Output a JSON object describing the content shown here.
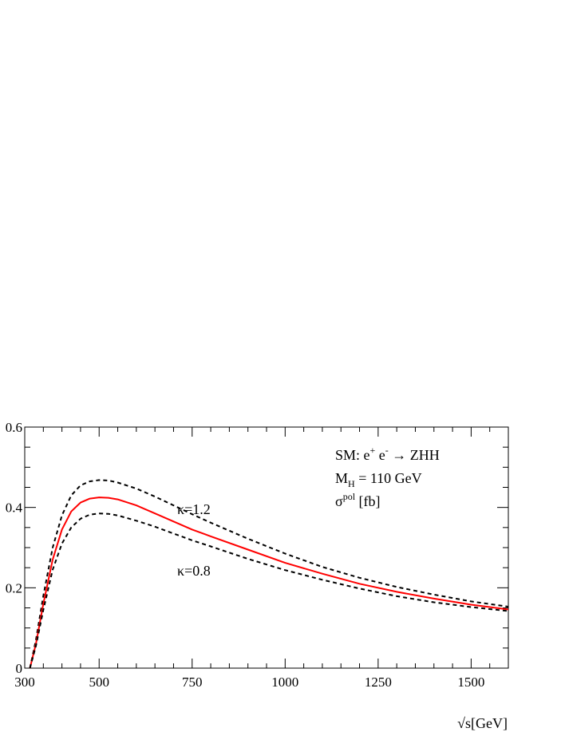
{
  "chart_data": {
    "type": "line",
    "xlabel": "√s[GeV]",
    "ylabel": "",
    "xlim": [
      300,
      1600
    ],
    "ylim": [
      0,
      0.6
    ],
    "x_ticks": [
      300,
      500,
      750,
      1000,
      1250,
      1500
    ],
    "x_tick_labels": [
      "300",
      "500",
      "750",
      "1000",
      "1250",
      "1500"
    ],
    "y_ticks": [
      0,
      0.2,
      0.4,
      0.6
    ],
    "y_tick_labels": [
      "0",
      "0.2",
      "0.4",
      "0.6"
    ],
    "grid": false,
    "annotations": {
      "line1": {
        "prefix": "SM: e",
        "sup1": "+",
        "mid": " e",
        "sup2": "-",
        "suffix": " → ZHH"
      },
      "line2": {
        "prefix": "M",
        "sub": "H",
        "suffix": " = 110 GeV"
      },
      "line3": {
        "prefix": "σ",
        "sup": "pol",
        "suffix": " [fb]"
      },
      "kappa_high": "κ=1.2",
      "kappa_low": "κ=0.8"
    },
    "series": [
      {
        "style": "dashed",
        "color": "#000000",
        "x": [
          314,
          330,
          350,
          375,
          400,
          425,
          450,
          475,
          500,
          525,
          550,
          600,
          650,
          700,
          750,
          800,
          900,
          1000,
          1100,
          1200,
          1300,
          1400,
          1500,
          1600
        ],
        "y": [
          0.0,
          0.07,
          0.18,
          0.3,
          0.38,
          0.43,
          0.455,
          0.465,
          0.468,
          0.467,
          0.462,
          0.447,
          0.427,
          0.405,
          0.383,
          0.362,
          0.322,
          0.285,
          0.252,
          0.225,
          0.202,
          0.183,
          0.166,
          0.153
        ]
      },
      {
        "style": "solid",
        "color": "#ff0000",
        "x": [
          314,
          330,
          350,
          375,
          400,
          425,
          450,
          475,
          500,
          525,
          550,
          600,
          650,
          700,
          750,
          800,
          900,
          1000,
          1100,
          1200,
          1300,
          1400,
          1500,
          1600
        ],
        "y": [
          0.0,
          0.06,
          0.16,
          0.27,
          0.345,
          0.39,
          0.412,
          0.422,
          0.425,
          0.424,
          0.42,
          0.405,
          0.385,
          0.365,
          0.345,
          0.328,
          0.295,
          0.262,
          0.235,
          0.21,
          0.19,
          0.173,
          0.158,
          0.146
        ]
      },
      {
        "style": "dashed",
        "color": "#000000",
        "x": [
          314,
          330,
          350,
          375,
          400,
          425,
          450,
          475,
          500,
          525,
          550,
          600,
          650,
          700,
          750,
          800,
          900,
          1000,
          1100,
          1200,
          1300,
          1400,
          1500,
          1600
        ],
        "y": [
          0.0,
          0.055,
          0.145,
          0.245,
          0.31,
          0.35,
          0.372,
          0.382,
          0.385,
          0.384,
          0.38,
          0.367,
          0.352,
          0.335,
          0.318,
          0.303,
          0.272,
          0.244,
          0.22,
          0.198,
          0.179,
          0.164,
          0.152,
          0.142
        ]
      }
    ]
  }
}
